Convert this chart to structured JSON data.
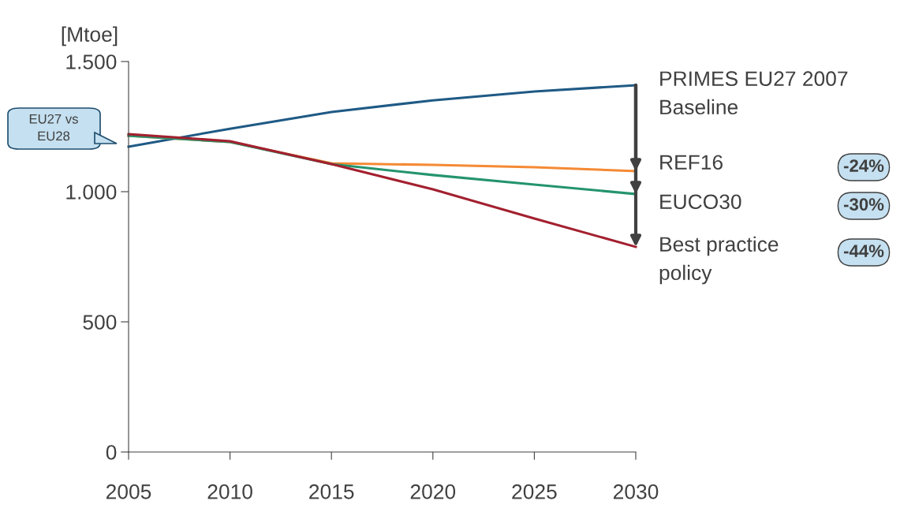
{
  "chart_data": {
    "type": "line",
    "ylabel": "[Mtoe]",
    "x": [
      2005,
      2010,
      2015,
      2020,
      2025,
      2030
    ],
    "series": [
      {
        "name": "PRIMES EU27 2007 Baseline",
        "color": "#1f5a85",
        "values": [
          1173,
          1242,
          1306,
          1351,
          1385,
          1409
        ]
      },
      {
        "name": "REF16",
        "color": "#f58a35",
        "values": [
          1215,
          1191,
          1109,
          1103,
          1094,
          1079
        ]
      },
      {
        "name": "EUCO30",
        "color": "#24946e",
        "values": [
          1215,
          1191,
          1106,
          1064,
          1027,
          991
        ]
      },
      {
        "name": "Best practice policy",
        "color": "#a3202f",
        "values": [
          1221,
          1194,
          1106,
          1009,
          897,
          788
        ]
      }
    ],
    "xlim": [
      2005,
      2030
    ],
    "xticks": [
      2005,
      2010,
      2015,
      2020,
      2025,
      2030
    ],
    "ylim": [
      0,
      1500
    ],
    "yticks": [
      0,
      {
        "value": 500,
        "label": "500"
      },
      {
        "value": 1000,
        "label": "1.000"
      },
      {
        "value": 1500,
        "label": "1.500"
      }
    ],
    "grid": false,
    "marker": "none",
    "line_style": "solid",
    "legend": "right",
    "annotations": [
      "EU27 vs EU28",
      "-24%",
      "-30%",
      "-44%"
    ]
  }
}
